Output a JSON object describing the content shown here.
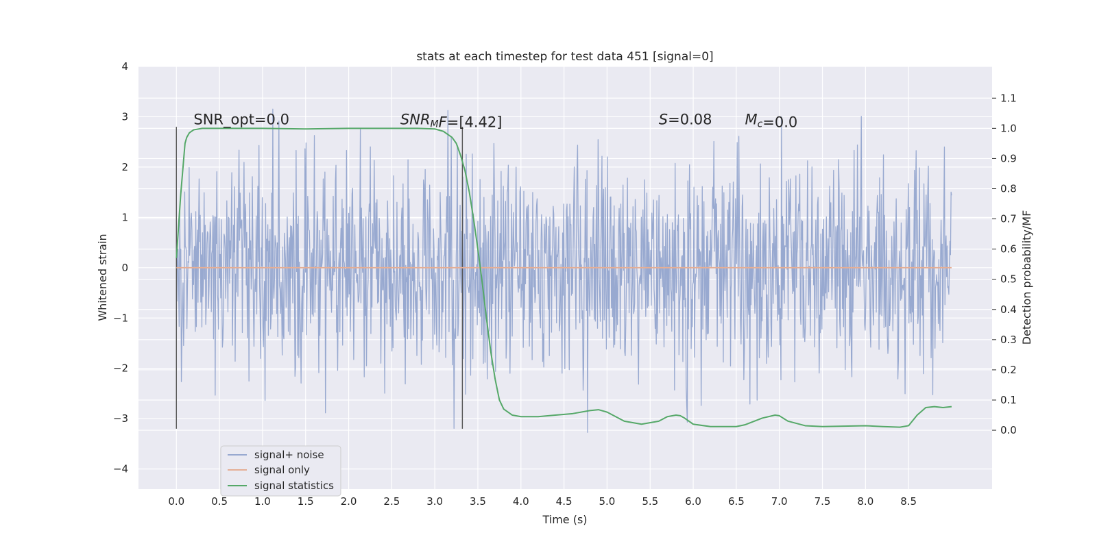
{
  "chart_data": {
    "type": "line",
    "title": "stats at each timestep for test data 451 [signal=0]",
    "xlabel": "Time (s)",
    "ylabel": "Whitened strain",
    "y2label": "Detection probability/MF",
    "xlim": [
      -0.44,
      9.47
    ],
    "ylim": [
      -4.4,
      4.0
    ],
    "y2lim": [
      -0.195,
      1.205
    ],
    "xticks": [
      0.0,
      0.5,
      1.0,
      1.5,
      2.0,
      2.5,
      3.0,
      3.5,
      4.0,
      4.5,
      5.0,
      5.5,
      6.0,
      6.5,
      7.0,
      7.5,
      8.0,
      8.5
    ],
    "xtick_labels": [
      "0.0",
      "0.5",
      "1.0",
      "1.5",
      "2.0",
      "2.5",
      "3.0",
      "3.5",
      "4.0",
      "4.5",
      "5.0",
      "5.5",
      "6.0",
      "6.5",
      "7.0",
      "7.5",
      "8.0",
      "8.5"
    ],
    "yticks": [
      -4,
      -3,
      -2,
      -1,
      0,
      1,
      2,
      3,
      4
    ],
    "ytick_labels": [
      "−4",
      "−3",
      "−2",
      "−1",
      "0",
      "1",
      "2",
      "3",
      "4"
    ],
    "y2ticks": [
      0.0,
      0.1,
      0.2,
      0.3,
      0.4,
      0.5,
      0.6,
      0.7,
      0.8,
      0.9,
      1.0,
      1.1
    ],
    "y2tick_labels": [
      "0.0",
      "0.1",
      "0.2",
      "0.3",
      "0.4",
      "0.5",
      "0.6",
      "0.7",
      "0.8",
      "0.9",
      "1.0",
      "1.1"
    ],
    "noise": {
      "t_start": 0.0,
      "t_end": 9.0,
      "samples": 1400,
      "sigma": 1.0,
      "seed": 451
    },
    "series": [
      {
        "name": "signal+ noise",
        "axis": "left",
        "color": "#98a9d0",
        "values": "synthetic gaussian noise (see noise)"
      },
      {
        "name": "signal only",
        "axis": "left",
        "color": "#e5ae95",
        "x": [
          0.0,
          9.0
        ],
        "y": [
          0.0,
          0.0
        ]
      },
      {
        "name": "signal statistics",
        "axis": "right",
        "color": "#55a868",
        "x": [
          0.0,
          0.05,
          0.1,
          0.12,
          0.15,
          0.2,
          0.3,
          0.5,
          1.0,
          1.5,
          2.0,
          2.5,
          2.8,
          3.0,
          3.1,
          3.2,
          3.25,
          3.3,
          3.35,
          3.4,
          3.45,
          3.5,
          3.55,
          3.6,
          3.65,
          3.7,
          3.75,
          3.8,
          3.9,
          4.0,
          4.2,
          4.4,
          4.6,
          4.8,
          4.9,
          5.0,
          5.2,
          5.4,
          5.6,
          5.7,
          5.8,
          5.85,
          5.9,
          6.0,
          6.2,
          6.5,
          6.6,
          6.8,
          6.95,
          7.0,
          7.1,
          7.3,
          7.5,
          8.0,
          8.2,
          8.4,
          8.5,
          8.6,
          8.7,
          8.8,
          8.9,
          9.0
        ],
        "y": [
          0.57,
          0.78,
          0.95,
          0.97,
          0.985,
          0.995,
          1.0,
          1.0,
          1.0,
          0.998,
          1.0,
          1.0,
          1.0,
          0.998,
          0.99,
          0.97,
          0.95,
          0.91,
          0.86,
          0.79,
          0.7,
          0.6,
          0.49,
          0.37,
          0.26,
          0.17,
          0.1,
          0.07,
          0.05,
          0.045,
          0.045,
          0.05,
          0.055,
          0.065,
          0.068,
          0.06,
          0.03,
          0.02,
          0.03,
          0.045,
          0.05,
          0.048,
          0.04,
          0.02,
          0.012,
          0.012,
          0.018,
          0.04,
          0.05,
          0.048,
          0.03,
          0.015,
          0.012,
          0.015,
          0.012,
          0.01,
          0.015,
          0.05,
          0.075,
          0.078,
          0.075,
          0.078
        ]
      }
    ],
    "vlines": [
      {
        "x": 0.0,
        "ymin": -3.2,
        "ymax": 2.8
      },
      {
        "x": 3.32,
        "ymin": -3.2,
        "ymax": 2.8
      }
    ],
    "annotations": [
      {
        "x": 0.2,
        "y": 2.85,
        "parts": [
          {
            "text": "SNR_opt=0.0",
            "style": "normal"
          }
        ]
      },
      {
        "x": 2.6,
        "y": 2.85,
        "parts": [
          {
            "text": "SNR",
            "style": "italic"
          },
          {
            "text": "M",
            "style": "italic-sub"
          },
          {
            "text": "F",
            "style": "italic"
          },
          {
            "text": "=[4.42]",
            "style": "normal"
          }
        ]
      },
      {
        "x": 5.6,
        "y": 2.85,
        "parts": [
          {
            "text": "S",
            "style": "italic"
          },
          {
            "text": "=0.08",
            "style": "normal"
          }
        ]
      },
      {
        "x": 6.6,
        "y": 2.85,
        "parts": [
          {
            "text": "M",
            "style": "italic"
          },
          {
            "text": "c",
            "style": "italic-sub"
          },
          {
            "text": "=0.0",
            "style": "normal"
          }
        ]
      }
    ],
    "legend": {
      "location": "lower-left",
      "entries": [
        "signal+ noise",
        "signal only",
        "signal statistics"
      ]
    },
    "grid": true,
    "background": "#eaeaf2"
  }
}
